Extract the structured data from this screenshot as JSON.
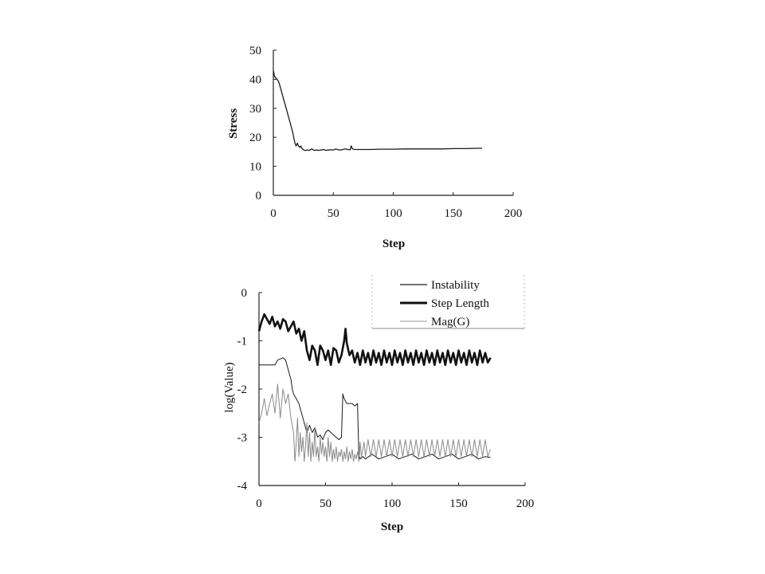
{
  "chart_data": [
    {
      "type": "line",
      "xlabel": "Step",
      "ylabel": "Stress",
      "xlim": [
        0,
        200
      ],
      "ylim": [
        0,
        50
      ],
      "xticks": [
        "0",
        "50",
        "100",
        "150",
        "200"
      ],
      "yticks": [
        "0",
        "10",
        "20",
        "30",
        "40",
        "50"
      ],
      "grid": false,
      "series": [
        {
          "x": [
            0,
            1,
            2,
            3,
            4,
            5,
            6,
            7,
            8,
            9,
            10,
            11,
            12,
            13,
            14,
            15,
            16,
            17,
            18,
            19,
            20,
            21,
            22,
            23,
            24,
            25,
            26,
            27,
            28,
            30,
            32,
            34,
            36,
            38,
            40,
            42,
            44,
            46,
            48,
            50,
            52,
            54,
            56,
            58,
            60,
            62,
            64,
            65,
            66,
            68,
            70,
            75,
            80,
            90,
            100,
            110,
            120,
            130,
            140,
            150,
            160,
            170,
            174
          ],
          "values": [
            43,
            41,
            40.5,
            40,
            39.5,
            38.5,
            37,
            35.5,
            34,
            32.5,
            31,
            29.5,
            28,
            26.5,
            25,
            23.5,
            22,
            20,
            18,
            17,
            18,
            17,
            16.5,
            17,
            16,
            15.8,
            15.5,
            15.5,
            15.6,
            15.5,
            16,
            15.5,
            15.6,
            15.5,
            15.6,
            15.8,
            15.5,
            15.6,
            15.7,
            15.6,
            16,
            15.7,
            15.6,
            15.8,
            16,
            15.8,
            15.7,
            17,
            16,
            15.8,
            15.8,
            15.8,
            15.8,
            15.9,
            15.9,
            16,
            16,
            16,
            16,
            16.1,
            16.1,
            16.2,
            16.2
          ],
          "color": "#1a1a1a"
        }
      ]
    },
    {
      "type": "line",
      "xlabel": "Step",
      "ylabel": "log(Value)",
      "xlim": [
        0,
        200
      ],
      "ylim": [
        -4,
        0
      ],
      "xticks": [
        "0",
        "50",
        "100",
        "150",
        "200"
      ],
      "yticks": [
        "0",
        "-1",
        "-2",
        "-3",
        "-4"
      ],
      "grid": false,
      "legend_position": "top-right",
      "series": [
        {
          "name": "Instability",
          "color": "#1a1a1a",
          "style": "thin",
          "x": [
            0,
            4,
            8,
            12,
            14,
            18,
            20,
            22,
            24,
            25,
            26,
            28,
            30,
            32,
            34,
            36,
            38,
            40,
            42,
            44,
            46,
            48,
            50,
            52,
            54,
            56,
            58,
            60,
            62,
            63,
            64,
            66,
            68,
            70,
            72,
            74,
            75,
            76,
            78,
            80,
            85,
            90,
            95,
            100,
            105,
            110,
            115,
            120,
            125,
            130,
            135,
            140,
            145,
            150,
            155,
            160,
            165,
            170,
            174
          ],
          "values": [
            -1.5,
            -1.5,
            -1.5,
            -1.5,
            -1.4,
            -1.35,
            -1.4,
            -1.6,
            -1.8,
            -2.0,
            -2.1,
            -2.2,
            -2.3,
            -2.5,
            -2.7,
            -2.9,
            -2.75,
            -2.9,
            -2.8,
            -3.0,
            -2.95,
            -3.05,
            -2.9,
            -2.85,
            -2.9,
            -2.95,
            -3.0,
            -3.05,
            -3.0,
            -2.1,
            -2.2,
            -2.3,
            -2.3,
            -2.3,
            -2.35,
            -2.3,
            -3.35,
            -3.45,
            -3.4,
            -3.45,
            -3.35,
            -3.45,
            -3.4,
            -3.35,
            -3.45,
            -3.4,
            -3.35,
            -3.45,
            -3.4,
            -3.35,
            -3.45,
            -3.4,
            -3.35,
            -3.45,
            -3.4,
            -3.35,
            -3.45,
            -3.4,
            -3.42
          ]
        },
        {
          "name": "Step Length",
          "color": "#111111",
          "style": "thick",
          "x": [
            0,
            2,
            4,
            6,
            8,
            10,
            12,
            14,
            16,
            18,
            20,
            22,
            24,
            26,
            28,
            30,
            32,
            34,
            36,
            38,
            40,
            42,
            44,
            46,
            48,
            50,
            52,
            54,
            56,
            58,
            60,
            62,
            64,
            65,
            66,
            68,
            70,
            72,
            74,
            76,
            78,
            80,
            82,
            84,
            86,
            88,
            90,
            92,
            94,
            96,
            98,
            100,
            102,
            104,
            106,
            108,
            110,
            112,
            114,
            116,
            118,
            120,
            122,
            124,
            126,
            128,
            130,
            132,
            134,
            136,
            138,
            140,
            142,
            144,
            146,
            148,
            150,
            152,
            154,
            156,
            158,
            160,
            162,
            164,
            166,
            168,
            170,
            172,
            174
          ],
          "values": [
            -0.8,
            -0.6,
            -0.45,
            -0.55,
            -0.65,
            -0.5,
            -0.7,
            -0.6,
            -0.75,
            -0.55,
            -0.6,
            -0.8,
            -0.7,
            -0.6,
            -0.85,
            -0.75,
            -1.0,
            -0.8,
            -1.2,
            -1.4,
            -1.1,
            -1.2,
            -1.5,
            -1.1,
            -1.2,
            -1.4,
            -1.2,
            -1.5,
            -1.15,
            -1.2,
            -1.45,
            -1.3,
            -1.0,
            -0.75,
            -1.05,
            -1.3,
            -1.2,
            -1.45,
            -1.25,
            -1.5,
            -1.2,
            -1.45,
            -1.25,
            -1.5,
            -1.2,
            -1.45,
            -1.25,
            -1.5,
            -1.2,
            -1.45,
            -1.25,
            -1.5,
            -1.2,
            -1.45,
            -1.25,
            -1.5,
            -1.2,
            -1.45,
            -1.25,
            -1.5,
            -1.2,
            -1.45,
            -1.25,
            -1.5,
            -1.2,
            -1.45,
            -1.25,
            -1.5,
            -1.2,
            -1.45,
            -1.25,
            -1.5,
            -1.2,
            -1.45,
            -1.25,
            -1.5,
            -1.2,
            -1.45,
            -1.25,
            -1.5,
            -1.2,
            -1.45,
            -1.25,
            -1.5,
            -1.2,
            -1.45,
            -1.25,
            -1.45,
            -1.35
          ]
        },
        {
          "name": "Mag(G)",
          "color": "#8a8a8a",
          "style": "thin",
          "x": [
            0,
            2,
            4,
            6,
            8,
            10,
            12,
            14,
            16,
            18,
            20,
            22,
            24,
            26,
            27,
            28,
            29,
            30,
            31,
            32,
            33,
            34,
            35,
            36,
            37,
            38,
            39,
            40,
            41,
            42,
            43,
            44,
            45,
            46,
            47,
            48,
            49,
            50,
            51,
            52,
            53,
            54,
            55,
            56,
            57,
            58,
            59,
            60,
            61,
            62,
            63,
            64,
            65,
            66,
            67,
            68,
            69,
            70,
            71,
            72,
            73,
            74,
            75,
            76,
            77,
            78,
            79,
            80,
            82,
            84,
            86,
            88,
            90,
            92,
            94,
            96,
            98,
            100,
            102,
            104,
            106,
            108,
            110,
            112,
            114,
            116,
            118,
            120,
            122,
            124,
            126,
            128,
            130,
            132,
            134,
            136,
            138,
            140,
            142,
            144,
            146,
            148,
            150,
            152,
            154,
            156,
            158,
            160,
            162,
            164,
            166,
            168,
            170,
            172,
            174
          ],
          "values": [
            -2.7,
            -2.5,
            -2.2,
            -2.55,
            -2.3,
            -2.1,
            -2.5,
            -1.9,
            -2.6,
            -2.0,
            -2.3,
            -2.1,
            -2.6,
            -2.9,
            -3.5,
            -3.1,
            -2.6,
            -3.4,
            -2.9,
            -3.3,
            -3.0,
            -3.5,
            -3.2,
            -2.7,
            -3.4,
            -2.9,
            -3.5,
            -3.1,
            -3.4,
            -2.8,
            -3.4,
            -3.2,
            -3.5,
            -3.0,
            -3.35,
            -3.1,
            -3.4,
            -3.2,
            -3.5,
            -3.0,
            -3.4,
            -3.1,
            -3.5,
            -3.25,
            -3.45,
            -3.2,
            -3.5,
            -3.3,
            -3.4,
            -3.25,
            -3.5,
            -3.3,
            -3.45,
            -3.2,
            -3.5,
            -3.3,
            -3.45,
            -3.25,
            -3.5,
            -3.35,
            -3.45,
            -3.3,
            -3.5,
            -3.1,
            -3.4,
            -3.25,
            -3.1,
            -3.4,
            -3.05,
            -3.4,
            -3.05,
            -3.4,
            -3.05,
            -3.4,
            -3.05,
            -3.4,
            -3.05,
            -3.4,
            -3.05,
            -3.4,
            -3.05,
            -3.4,
            -3.05,
            -3.4,
            -3.05,
            -3.4,
            -3.05,
            -3.4,
            -3.05,
            -3.4,
            -3.05,
            -3.4,
            -3.05,
            -3.4,
            -3.05,
            -3.4,
            -3.05,
            -3.4,
            -3.05,
            -3.4,
            -3.05,
            -3.4,
            -3.05,
            -3.4,
            -3.05,
            -3.4,
            -3.05,
            -3.4,
            -3.05,
            -3.4,
            -3.05,
            -3.4,
            -3.05,
            -3.4,
            -3.25
          ]
        }
      ]
    }
  ]
}
